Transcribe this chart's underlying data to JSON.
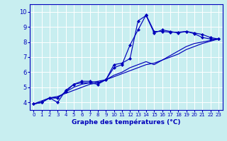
{
  "xlabel": "Graphe des températures (°C)",
  "bg_color": "#c8eef0",
  "line_color": "#0000bb",
  "grid_color": "#ffffff",
  "x_ticks": [
    0,
    1,
    2,
    3,
    4,
    5,
    6,
    7,
    8,
    9,
    10,
    11,
    12,
    13,
    14,
    15,
    16,
    17,
    18,
    19,
    20,
    21,
    22,
    23
  ],
  "y_ticks": [
    4,
    5,
    6,
    7,
    8,
    9,
    10
  ],
  "xlim": [
    -0.5,
    23.5
  ],
  "ylim": [
    3.5,
    10.5
  ],
  "series": [
    {
      "y": [
        3.9,
        4.0,
        4.3,
        4.0,
        4.8,
        5.2,
        5.3,
        5.3,
        5.2,
        5.5,
        6.3,
        6.5,
        7.8,
        8.8,
        9.8,
        8.7,
        8.7,
        8.65,
        8.65,
        8.7,
        8.55,
        8.3,
        8.2,
        8.2
      ],
      "marker": true
    },
    {
      "y": [
        3.9,
        4.0,
        4.3,
        4.3,
        4.7,
        5.2,
        5.4,
        5.4,
        5.3,
        5.5,
        6.5,
        6.6,
        6.9,
        9.4,
        9.75,
        8.6,
        8.8,
        8.7,
        8.6,
        8.7,
        8.6,
        8.5,
        8.3,
        8.2
      ],
      "marker": true
    },
    {
      "y": [
        3.9,
        4.0,
        4.3,
        4.3,
        4.7,
        5.0,
        5.2,
        5.3,
        5.4,
        5.5,
        5.8,
        6.0,
        6.3,
        6.5,
        6.7,
        6.5,
        6.8,
        7.1,
        7.4,
        7.7,
        7.9,
        8.0,
        8.1,
        8.2
      ],
      "marker": false
    },
    {
      "y": [
        3.9,
        4.1,
        4.3,
        4.4,
        4.6,
        4.8,
        5.0,
        5.2,
        5.3,
        5.5,
        5.7,
        5.9,
        6.1,
        6.3,
        6.5,
        6.6,
        6.8,
        7.0,
        7.2,
        7.5,
        7.7,
        7.9,
        8.05,
        8.2
      ],
      "marker": false
    }
  ],
  "marker_style": "D",
  "marker_size": 2.2,
  "linewidth": 0.85,
  "xlabel_fontsize": 6.5,
  "tick_fontsize_x": 5.0,
  "tick_fontsize_y": 6.0
}
